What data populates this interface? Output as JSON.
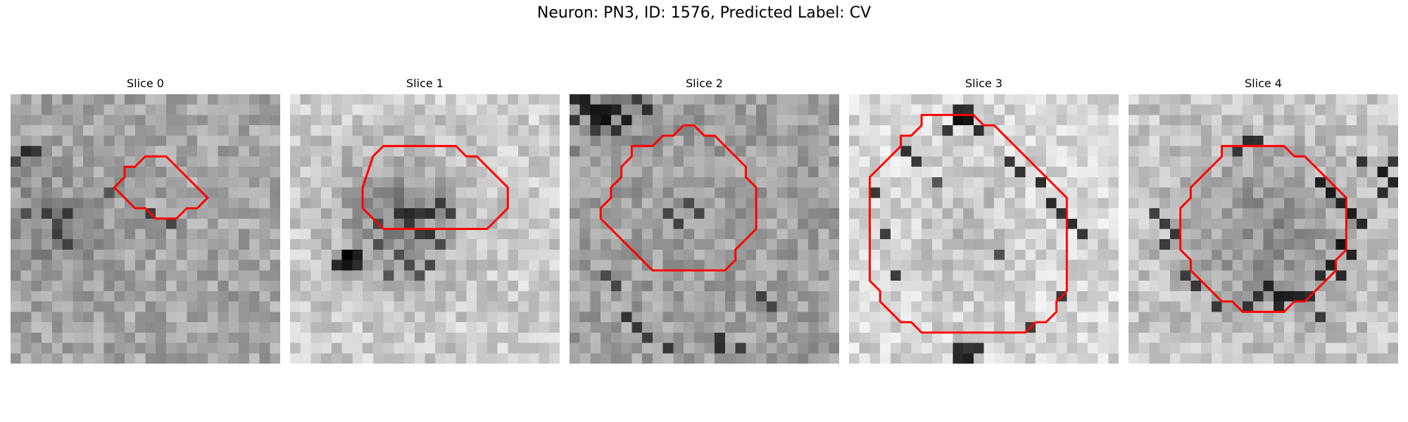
{
  "figure": {
    "title": "Neuron: PN3, ID: 1576, Predicted Label: CV"
  },
  "colors": {
    "contour": "#ff0000",
    "colormap": "grayscale"
  },
  "panels": [
    {
      "label": "Slice 0",
      "contour": [
        [
          11,
          7
        ],
        [
          12,
          7
        ],
        [
          13,
          6
        ],
        [
          14,
          6
        ],
        [
          15,
          6
        ],
        [
          16,
          7
        ],
        [
          17,
          8
        ],
        [
          18,
          9
        ],
        [
          19,
          10
        ],
        [
          18,
          11
        ],
        [
          17,
          11
        ],
        [
          16,
          12
        ],
        [
          15,
          12
        ],
        [
          14,
          12
        ],
        [
          13,
          11
        ],
        [
          12,
          11
        ],
        [
          11,
          10
        ],
        [
          10,
          9
        ],
        [
          11,
          8
        ]
      ],
      "dark_spots": [
        [
          1,
          5,
          40
        ],
        [
          2,
          5,
          55
        ],
        [
          0,
          6,
          70
        ],
        [
          3,
          11,
          60
        ],
        [
          4,
          12,
          70
        ],
        [
          5,
          11,
          55
        ],
        [
          4,
          13,
          60
        ],
        [
          5,
          14,
          65
        ],
        [
          1,
          11,
          80
        ],
        [
          9,
          9,
          85
        ],
        [
          13,
          11,
          60
        ],
        [
          15,
          12,
          70
        ]
      ]
    },
    {
      "label": "Slice 1",
      "contour": [
        [
          8,
          6
        ],
        [
          9,
          5
        ],
        [
          10,
          5
        ],
        [
          11,
          5
        ],
        [
          12,
          5
        ],
        [
          13,
          5
        ],
        [
          14,
          5
        ],
        [
          15,
          5
        ],
        [
          16,
          5
        ],
        [
          17,
          6
        ],
        [
          18,
          6
        ],
        [
          19,
          7
        ],
        [
          20,
          8
        ],
        [
          21,
          9
        ],
        [
          21,
          10
        ],
        [
          21,
          11
        ],
        [
          20,
          12
        ],
        [
          19,
          13
        ],
        [
          18,
          13
        ],
        [
          17,
          13
        ],
        [
          16,
          13
        ],
        [
          15,
          13
        ],
        [
          14,
          13
        ],
        [
          13,
          13
        ],
        [
          12,
          13
        ],
        [
          11,
          13
        ],
        [
          10,
          13
        ],
        [
          9,
          13
        ],
        [
          8,
          12
        ],
        [
          7,
          11
        ],
        [
          7,
          10
        ],
        [
          7,
          9
        ]
      ],
      "dark_spots": [
        [
          5,
          15,
          0
        ],
        [
          5,
          16,
          20
        ],
        [
          6,
          15,
          30
        ],
        [
          4,
          16,
          40
        ],
        [
          6,
          16,
          45
        ],
        [
          10,
          11,
          50
        ],
        [
          11,
          11,
          40
        ],
        [
          12,
          11,
          55
        ],
        [
          13,
          11,
          45
        ],
        [
          11,
          12,
          55
        ],
        [
          12,
          13,
          60
        ],
        [
          13,
          13,
          50
        ],
        [
          8,
          12,
          70
        ],
        [
          14,
          10,
          60
        ],
        [
          15,
          11,
          65
        ],
        [
          10,
          15,
          80
        ],
        [
          11,
          16,
          75
        ],
        [
          12,
          17,
          80
        ],
        [
          13,
          16,
          70
        ],
        [
          9,
          17,
          85
        ],
        [
          14,
          14,
          75
        ],
        [
          8,
          14,
          80
        ]
      ]
    },
    {
      "label": "Slice 2",
      "contour": [
        [
          6,
          5
        ],
        [
          7,
          5
        ],
        [
          8,
          5
        ],
        [
          9,
          4
        ],
        [
          10,
          4
        ],
        [
          11,
          3
        ],
        [
          12,
          3
        ],
        [
          13,
          4
        ],
        [
          14,
          4
        ],
        [
          15,
          5
        ],
        [
          16,
          6
        ],
        [
          17,
          7
        ],
        [
          17,
          8
        ],
        [
          18,
          9
        ],
        [
          18,
          10
        ],
        [
          18,
          11
        ],
        [
          18,
          12
        ],
        [
          18,
          13
        ],
        [
          17,
          14
        ],
        [
          16,
          15
        ],
        [
          16,
          16
        ],
        [
          15,
          17
        ],
        [
          14,
          17
        ],
        [
          13,
          17
        ],
        [
          12,
          17
        ],
        [
          11,
          17
        ],
        [
          10,
          17
        ],
        [
          9,
          17
        ],
        [
          8,
          17
        ],
        [
          7,
          16
        ],
        [
          6,
          15
        ],
        [
          5,
          14
        ],
        [
          4,
          13
        ],
        [
          3,
          12
        ],
        [
          3,
          11
        ],
        [
          4,
          10
        ],
        [
          4,
          9
        ],
        [
          5,
          8
        ],
        [
          5,
          7
        ],
        [
          6,
          6
        ]
      ],
      "dark_spots": [
        [
          0,
          0,
          40
        ],
        [
          1,
          0,
          30
        ],
        [
          2,
          1,
          20
        ],
        [
          3,
          1,
          25
        ],
        [
          4,
          1,
          35
        ],
        [
          5,
          2,
          30
        ],
        [
          3,
          2,
          15
        ],
        [
          2,
          2,
          30
        ],
        [
          4,
          3,
          50
        ],
        [
          1,
          1,
          35
        ],
        [
          0,
          2,
          55
        ],
        [
          2,
          3,
          60
        ],
        [
          6,
          0,
          60
        ],
        [
          7,
          1,
          45
        ],
        [
          9,
          11,
          70
        ],
        [
          10,
          12,
          65
        ],
        [
          11,
          10,
          75
        ],
        [
          12,
          11,
          70
        ],
        [
          5,
          21,
          50
        ],
        [
          6,
          22,
          55
        ],
        [
          7,
          23,
          60
        ],
        [
          9,
          24,
          55
        ],
        [
          14,
          23,
          50
        ],
        [
          14,
          24,
          45
        ],
        [
          16,
          24,
          60
        ],
        [
          4,
          18,
          70
        ],
        [
          18,
          19,
          65
        ],
        [
          19,
          20,
          70
        ],
        [
          3,
          17,
          75
        ]
      ]
    },
    {
      "label": "Slice 3",
      "contour": [
        [
          7,
          2
        ],
        [
          8,
          2
        ],
        [
          9,
          2
        ],
        [
          10,
          2
        ],
        [
          11,
          2
        ],
        [
          12,
          2
        ],
        [
          13,
          3
        ],
        [
          14,
          3
        ],
        [
          15,
          4
        ],
        [
          16,
          5
        ],
        [
          17,
          6
        ],
        [
          18,
          7
        ],
        [
          19,
          8
        ],
        [
          20,
          9
        ],
        [
          21,
          10
        ],
        [
          21,
          11
        ],
        [
          21,
          12
        ],
        [
          21,
          13
        ],
        [
          21,
          14
        ],
        [
          21,
          15
        ],
        [
          21,
          16
        ],
        [
          21,
          17
        ],
        [
          21,
          18
        ],
        [
          21,
          19
        ],
        [
          20,
          20
        ],
        [
          20,
          21
        ],
        [
          19,
          22
        ],
        [
          18,
          22
        ],
        [
          17,
          23
        ],
        [
          16,
          23
        ],
        [
          15,
          23
        ],
        [
          14,
          23
        ],
        [
          13,
          23
        ],
        [
          12,
          23
        ],
        [
          11,
          23
        ],
        [
          10,
          23
        ],
        [
          9,
          23
        ],
        [
          8,
          23
        ],
        [
          7,
          23
        ],
        [
          6,
          22
        ],
        [
          5,
          22
        ],
        [
          4,
          21
        ],
        [
          3,
          20
        ],
        [
          3,
          19
        ],
        [
          2,
          18
        ],
        [
          2,
          17
        ],
        [
          2,
          16
        ],
        [
          2,
          15
        ],
        [
          2,
          14
        ],
        [
          2,
          13
        ],
        [
          2,
          12
        ],
        [
          2,
          11
        ],
        [
          2,
          10
        ],
        [
          2,
          9
        ],
        [
          2,
          8
        ],
        [
          3,
          7
        ],
        [
          4,
          6
        ],
        [
          5,
          5
        ],
        [
          5,
          4
        ],
        [
          6,
          4
        ],
        [
          7,
          3
        ]
      ],
      "dark_spots": [
        [
          10,
          2,
          10
        ],
        [
          11,
          2,
          20
        ],
        [
          10,
          1,
          45
        ],
        [
          11,
          1,
          50
        ],
        [
          12,
          3,
          45
        ],
        [
          9,
          3,
          55
        ],
        [
          5,
          5,
          50
        ],
        [
          6,
          6,
          55
        ],
        [
          15,
          6,
          55
        ],
        [
          16,
          7,
          50
        ],
        [
          18,
          8,
          45
        ],
        [
          19,
          10,
          40
        ],
        [
          20,
          11,
          50
        ],
        [
          21,
          12,
          45
        ],
        [
          22,
          13,
          55
        ],
        [
          20,
          19,
          55
        ],
        [
          17,
          22,
          60
        ],
        [
          10,
          24,
          45
        ],
        [
          11,
          25,
          30
        ],
        [
          12,
          24,
          50
        ],
        [
          10,
          25,
          40
        ],
        [
          11,
          24,
          55
        ],
        [
          2,
          9,
          55
        ],
        [
          3,
          13,
          60
        ],
        [
          4,
          17,
          60
        ],
        [
          8,
          8,
          85
        ],
        [
          14,
          15,
          80
        ]
      ]
    },
    {
      "label": "Slice 4",
      "contour": [
        [
          9,
          5
        ],
        [
          10,
          5
        ],
        [
          11,
          5
        ],
        [
          12,
          5
        ],
        [
          13,
          5
        ],
        [
          14,
          5
        ],
        [
          15,
          5
        ],
        [
          16,
          6
        ],
        [
          17,
          6
        ],
        [
          18,
          7
        ],
        [
          19,
          8
        ],
        [
          20,
          9
        ],
        [
          21,
          10
        ],
        [
          21,
          11
        ],
        [
          21,
          12
        ],
        [
          21,
          13
        ],
        [
          21,
          14
        ],
        [
          21,
          15
        ],
        [
          20,
          16
        ],
        [
          20,
          17
        ],
        [
          19,
          18
        ],
        [
          18,
          19
        ],
        [
          17,
          20
        ],
        [
          16,
          20
        ],
        [
          15,
          21
        ],
        [
          14,
          21
        ],
        [
          13,
          21
        ],
        [
          12,
          21
        ],
        [
          11,
          21
        ],
        [
          10,
          20
        ],
        [
          9,
          20
        ],
        [
          8,
          19
        ],
        [
          7,
          18
        ],
        [
          6,
          17
        ],
        [
          6,
          16
        ],
        [
          5,
          15
        ],
        [
          5,
          14
        ],
        [
          5,
          13
        ],
        [
          5,
          12
        ],
        [
          5,
          11
        ],
        [
          6,
          10
        ],
        [
          6,
          9
        ],
        [
          7,
          8
        ],
        [
          8,
          7
        ],
        [
          9,
          6
        ]
      ],
      "dark_spots": [
        [
          18,
          8,
          30
        ],
        [
          19,
          9,
          25
        ],
        [
          20,
          10,
          35
        ],
        [
          21,
          11,
          30
        ],
        [
          22,
          12,
          40
        ],
        [
          20,
          14,
          20
        ],
        [
          21,
          15,
          35
        ],
        [
          19,
          16,
          30
        ],
        [
          20,
          17,
          40
        ],
        [
          18,
          17,
          45
        ],
        [
          13,
          18,
          35
        ],
        [
          14,
          19,
          25
        ],
        [
          15,
          19,
          30
        ],
        [
          14,
          20,
          40
        ],
        [
          16,
          19,
          35
        ],
        [
          12,
          19,
          50
        ],
        [
          11,
          20,
          50
        ],
        [
          17,
          19,
          45
        ],
        [
          24,
          7,
          30
        ],
        [
          25,
          8,
          35
        ],
        [
          24,
          9,
          45
        ],
        [
          25,
          6,
          55
        ],
        [
          22,
          6,
          50
        ],
        [
          11,
          4,
          45
        ],
        [
          12,
          4,
          50
        ],
        [
          10,
          5,
          55
        ],
        [
          3,
          12,
          60
        ],
        [
          4,
          13,
          55
        ],
        [
          3,
          14,
          60
        ],
        [
          2,
          11,
          65
        ],
        [
          5,
          17,
          60
        ],
        [
          6,
          18,
          55
        ],
        [
          8,
          20,
          55
        ],
        [
          18,
          21,
          60
        ]
      ]
    }
  ]
}
